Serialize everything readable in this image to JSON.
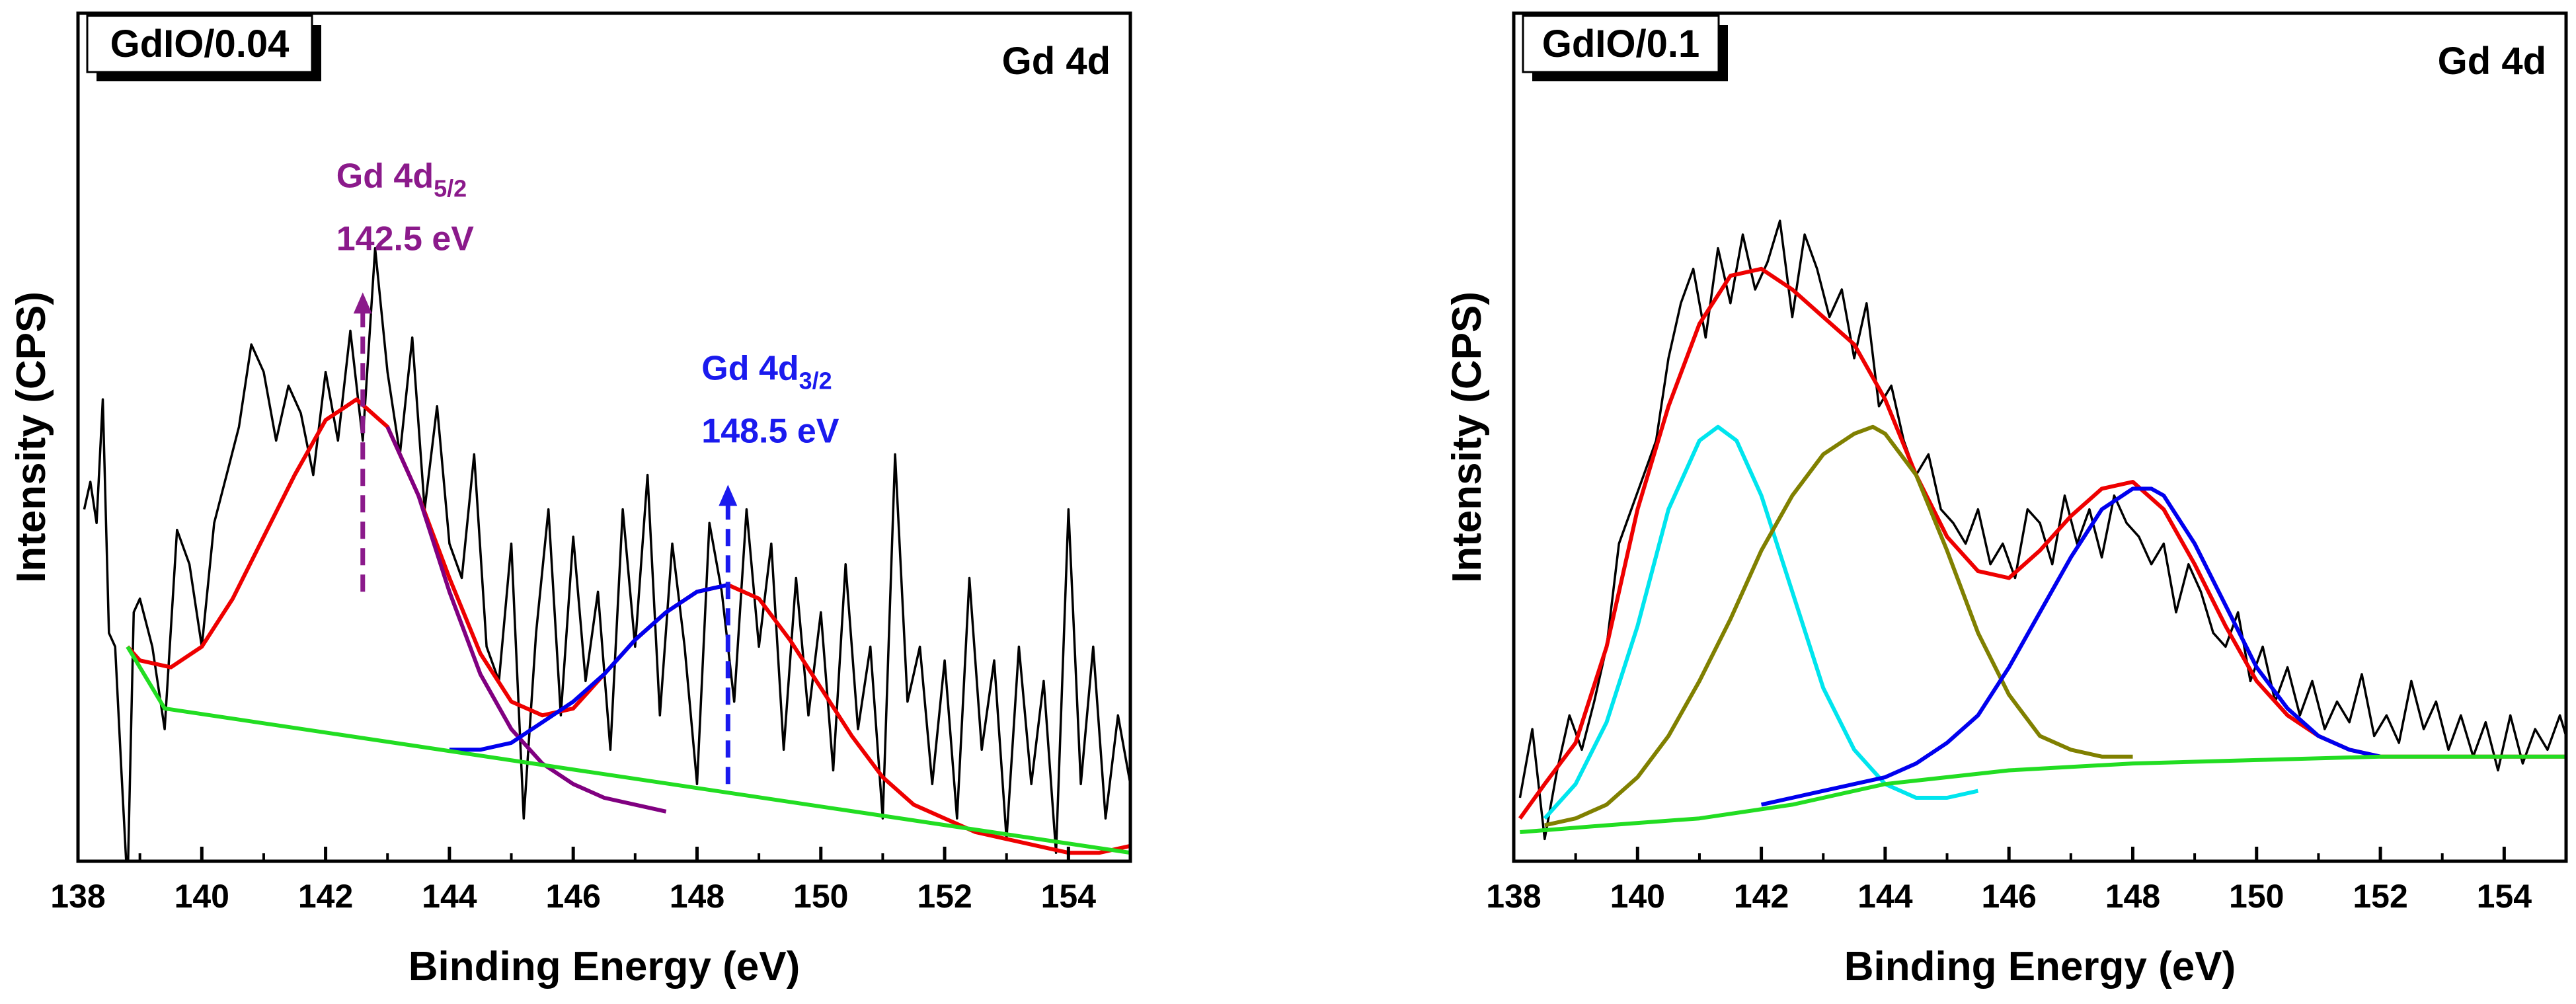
{
  "chart_data": [
    {
      "type": "line",
      "panel_label": "GdIO/0.04",
      "region_label": "Gd 4d",
      "xlabel": "Binding Energy (eV)",
      "ylabel": "Intensity (CPS)",
      "xlim": [
        138,
        155
      ],
      "ylim": [
        0,
        1
      ],
      "x_ticks": [
        138,
        140,
        142,
        144,
        146,
        148,
        150,
        152,
        154
      ],
      "grid": false,
      "annotations": [
        {
          "name": "Gd 4d5/2",
          "text_main": "Gd 4d",
          "text_sub": "5/2",
          "energy": "142.5 eV",
          "x": 142.6,
          "y_arrow_top": 0.81,
          "y_arrow_bottom": 0.38,
          "color": "#8b1a8b"
        },
        {
          "name": "Gd 4d3/2",
          "text_main": "Gd 4d",
          "text_sub": "3/2",
          "energy": "148.5 eV",
          "x": 148.5,
          "y_arrow_top": 0.53,
          "y_arrow_bottom": 0.1,
          "color": "#1a1aee"
        }
      ],
      "series": [
        {
          "role": "raw",
          "color": "#000000",
          "x": [
            138.1,
            138.2,
            138.3,
            138.4,
            138.5,
            138.6,
            138.7,
            138.8,
            138.9,
            139.0,
            139.2,
            139.4,
            139.6,
            139.8,
            140.0,
            140.2,
            140.4,
            140.6,
            140.8,
            141.0,
            141.2,
            141.4,
            141.6,
            141.8,
            142.0,
            142.2,
            142.4,
            142.6,
            142.8,
            143.0,
            143.2,
            143.4,
            143.6,
            143.8,
            144.0,
            144.2,
            144.4,
            144.6,
            144.8,
            145.0,
            145.2,
            145.4,
            145.6,
            145.8,
            146.0,
            146.2,
            146.4,
            146.6,
            146.8,
            147.0,
            147.2,
            147.4,
            147.6,
            147.8,
            148.0,
            148.2,
            148.4,
            148.6,
            148.8,
            149.0,
            149.2,
            149.4,
            149.6,
            149.8,
            150.0,
            150.2,
            150.4,
            150.6,
            150.8,
            151.0,
            151.2,
            151.4,
            151.6,
            151.8,
            152.0,
            152.2,
            152.4,
            152.6,
            152.8,
            153.0,
            153.2,
            153.4,
            153.6,
            153.8,
            154.0,
            154.2,
            154.4,
            154.6,
            154.8,
            155.0
          ],
          "y": [
            0.5,
            0.54,
            0.48,
            0.66,
            0.32,
            0.3,
            0.12,
            -0.05,
            0.35,
            0.37,
            0.3,
            0.18,
            0.47,
            0.42,
            0.3,
            0.48,
            0.55,
            0.62,
            0.74,
            0.7,
            0.6,
            0.68,
            0.64,
            0.55,
            0.7,
            0.6,
            0.76,
            0.6,
            0.88,
            0.7,
            0.58,
            0.75,
            0.5,
            0.65,
            0.45,
            0.4,
            0.58,
            0.3,
            0.25,
            0.45,
            0.05,
            0.32,
            0.5,
            0.2,
            0.46,
            0.25,
            0.38,
            0.15,
            0.5,
            0.3,
            0.55,
            0.2,
            0.45,
            0.3,
            0.1,
            0.48,
            0.38,
            0.22,
            0.5,
            0.3,
            0.45,
            0.15,
            0.4,
            0.2,
            0.35,
            0.12,
            0.42,
            0.18,
            0.3,
            0.05,
            0.58,
            0.22,
            0.3,
            0.1,
            0.28,
            0.05,
            0.4,
            0.15,
            0.28,
            0.02,
            0.3,
            0.1,
            0.25,
            0.0,
            0.5,
            0.1,
            0.3,
            0.05,
            0.2,
            0.1
          ]
        },
        {
          "role": "envelope",
          "color": "#ee0000",
          "x": [
            138.8,
            139.0,
            139.5,
            140.0,
            140.5,
            141.0,
            141.5,
            142.0,
            142.5,
            143.0,
            143.5,
            144.0,
            144.5,
            145.0,
            145.5,
            146.0,
            146.5,
            147.0,
            147.5,
            148.0,
            148.5,
            149.0,
            149.5,
            150.0,
            150.5,
            151.0,
            151.5,
            152.0,
            152.5,
            153.0,
            153.5,
            154.0,
            154.5,
            155.0
          ],
          "y": [
            0.3,
            0.28,
            0.27,
            0.3,
            0.37,
            0.46,
            0.55,
            0.63,
            0.66,
            0.62,
            0.52,
            0.4,
            0.29,
            0.22,
            0.2,
            0.21,
            0.26,
            0.31,
            0.35,
            0.38,
            0.39,
            0.37,
            0.31,
            0.24,
            0.17,
            0.11,
            0.07,
            0.05,
            0.03,
            0.02,
            0.01,
            0.0,
            0.0,
            0.01
          ]
        },
        {
          "role": "Gd 4d5/2 component",
          "color": "#800080",
          "x": [
            143.0,
            143.5,
            144.0,
            144.5,
            145.0,
            145.5,
            146.0,
            146.5,
            147.0,
            147.5
          ],
          "y": [
            0.62,
            0.52,
            0.38,
            0.26,
            0.18,
            0.13,
            0.1,
            0.08,
            0.07,
            0.06
          ]
        },
        {
          "role": "Gd 4d3/2 component",
          "color": "#0000ee",
          "x": [
            144.0,
            144.5,
            145.0,
            145.5,
            146.0,
            146.5,
            147.0,
            147.5,
            148.0,
            148.5
          ],
          "y": [
            0.15,
            0.15,
            0.16,
            0.19,
            0.22,
            0.26,
            0.31,
            0.35,
            0.38,
            0.39
          ]
        },
        {
          "role": "background",
          "color": "#22dd22",
          "x": [
            138.8,
            139.4,
            155.0
          ],
          "y": [
            0.3,
            0.21,
            0.0
          ]
        }
      ]
    },
    {
      "type": "line",
      "panel_label": "GdIO/0.1",
      "region_label": "Gd 4d",
      "xlabel": "Binding Energy (eV)",
      "ylabel": "Intensity (CPS)",
      "xlim": [
        138,
        155
      ],
      "ylim": [
        0,
        1
      ],
      "x_ticks": [
        138,
        140,
        142,
        144,
        146,
        148,
        150,
        152,
        154
      ],
      "grid": false,
      "series": [
        {
          "role": "raw",
          "color": "#000000",
          "x": [
            138.1,
            138.3,
            138.5,
            138.7,
            138.9,
            139.1,
            139.3,
            139.5,
            139.7,
            139.9,
            140.1,
            140.3,
            140.5,
            140.7,
            140.9,
            141.1,
            141.3,
            141.5,
            141.7,
            141.9,
            142.1,
            142.3,
            142.5,
            142.7,
            142.9,
            143.1,
            143.3,
            143.5,
            143.7,
            143.9,
            144.1,
            144.3,
            144.5,
            144.7,
            144.9,
            145.1,
            145.3,
            145.5,
            145.7,
            145.9,
            146.1,
            146.3,
            146.5,
            146.7,
            146.9,
            147.1,
            147.3,
            147.5,
            147.7,
            147.9,
            148.1,
            148.3,
            148.5,
            148.7,
            148.9,
            149.1,
            149.3,
            149.5,
            149.7,
            149.9,
            150.1,
            150.3,
            150.5,
            150.7,
            150.9,
            151.1,
            151.3,
            151.5,
            151.7,
            151.9,
            152.1,
            152.3,
            152.5,
            152.7,
            152.9,
            153.1,
            153.3,
            153.5,
            153.7,
            153.9,
            154.1,
            154.3,
            154.5,
            154.7,
            154.9,
            155.0
          ],
          "y": [
            0.08,
            0.18,
            0.02,
            0.12,
            0.2,
            0.15,
            0.22,
            0.3,
            0.45,
            0.5,
            0.55,
            0.6,
            0.72,
            0.8,
            0.85,
            0.75,
            0.88,
            0.8,
            0.9,
            0.82,
            0.86,
            0.92,
            0.78,
            0.9,
            0.85,
            0.78,
            0.82,
            0.72,
            0.8,
            0.65,
            0.68,
            0.6,
            0.55,
            0.58,
            0.5,
            0.48,
            0.45,
            0.5,
            0.42,
            0.45,
            0.4,
            0.5,
            0.48,
            0.42,
            0.52,
            0.45,
            0.5,
            0.43,
            0.52,
            0.48,
            0.46,
            0.42,
            0.45,
            0.35,
            0.42,
            0.38,
            0.32,
            0.3,
            0.35,
            0.25,
            0.3,
            0.22,
            0.27,
            0.2,
            0.25,
            0.18,
            0.22,
            0.19,
            0.26,
            0.17,
            0.2,
            0.16,
            0.25,
            0.18,
            0.22,
            0.15,
            0.2,
            0.14,
            0.19,
            0.12,
            0.2,
            0.13,
            0.18,
            0.15,
            0.2,
            0.17
          ]
        },
        {
          "role": "envelope",
          "color": "#ee0000",
          "x": [
            138.1,
            138.5,
            139.0,
            139.5,
            140.0,
            140.5,
            141.0,
            141.5,
            142.0,
            142.5,
            143.0,
            143.5,
            144.0,
            144.5,
            145.0,
            145.5,
            146.0,
            146.5,
            147.0,
            147.5,
            148.0,
            148.5,
            149.0,
            149.5,
            150.0,
            150.5,
            151.0,
            151.5,
            152.0,
            152.5,
            153.0,
            153.5,
            154.0,
            154.5,
            155.0
          ],
          "y": [
            0.05,
            0.1,
            0.16,
            0.3,
            0.5,
            0.65,
            0.77,
            0.84,
            0.85,
            0.82,
            0.78,
            0.74,
            0.66,
            0.55,
            0.46,
            0.41,
            0.4,
            0.44,
            0.49,
            0.53,
            0.54,
            0.5,
            0.42,
            0.33,
            0.25,
            0.2,
            0.17,
            0.15,
            0.14,
            0.14,
            0.14,
            0.14,
            0.14,
            0.14,
            0.14
          ]
        },
        {
          "role": "component 1",
          "color": "#00e5ee",
          "x": [
            138.5,
            139.0,
            139.5,
            140.0,
            140.5,
            141.0,
            141.3,
            141.6,
            142.0,
            142.5,
            143.0,
            143.5,
            144.0,
            144.5,
            145.0,
            145.5
          ],
          "y": [
            0.05,
            0.1,
            0.19,
            0.33,
            0.5,
            0.6,
            0.62,
            0.6,
            0.52,
            0.38,
            0.24,
            0.15,
            0.1,
            0.08,
            0.08,
            0.09
          ]
        },
        {
          "role": "component 2",
          "color": "#808000",
          "x": [
            138.5,
            139.0,
            139.5,
            140.0,
            140.5,
            141.0,
            141.5,
            142.0,
            142.5,
            143.0,
            143.5,
            143.8,
            144.0,
            144.5,
            145.0,
            145.5,
            146.0,
            146.5,
            147.0,
            147.5,
            148.0
          ],
          "y": [
            0.04,
            0.05,
            0.07,
            0.11,
            0.17,
            0.25,
            0.34,
            0.44,
            0.52,
            0.58,
            0.61,
            0.62,
            0.61,
            0.55,
            0.44,
            0.32,
            0.23,
            0.17,
            0.15,
            0.14,
            0.14
          ]
        },
        {
          "role": "component 3",
          "color": "#0000ee",
          "x": [
            142.0,
            142.5,
            143.0,
            143.5,
            144.0,
            144.5,
            145.0,
            145.5,
            146.0,
            146.5,
            147.0,
            147.5,
            148.0,
            148.3,
            148.5,
            149.0,
            149.5,
            150.0,
            150.5,
            151.0,
            151.5,
            152.0
          ],
          "y": [
            0.07,
            0.08,
            0.09,
            0.1,
            0.11,
            0.13,
            0.16,
            0.2,
            0.27,
            0.35,
            0.43,
            0.5,
            0.53,
            0.53,
            0.52,
            0.45,
            0.36,
            0.27,
            0.21,
            0.17,
            0.15,
            0.14
          ]
        },
        {
          "role": "background",
          "color": "#22dd22",
          "x": [
            138.1,
            139.5,
            141.0,
            142.5,
            144.0,
            146.0,
            148.0,
            150.0,
            152.0,
            155.0
          ],
          "y": [
            0.03,
            0.04,
            0.05,
            0.07,
            0.1,
            0.12,
            0.13,
            0.135,
            0.14,
            0.14
          ]
        }
      ]
    }
  ]
}
